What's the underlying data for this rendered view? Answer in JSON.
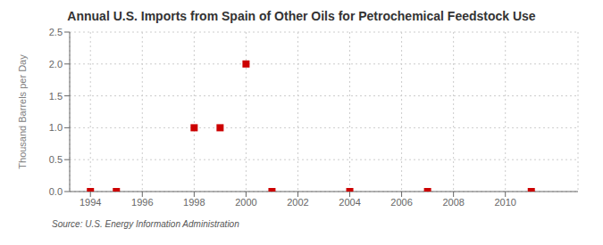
{
  "chart_data": {
    "type": "scatter",
    "title": "Annual U.S. Imports from Spain of Other Oils for Petrochemical Feedstock Use",
    "y_label": "Thousand Barrels per Day",
    "annotations": [
      "Source: U.S. Energy Information Administration"
    ],
    "x": [
      1994,
      1995,
      1998,
      1999,
      2000,
      2001,
      2004,
      2007,
      2011
    ],
    "values": [
      0.0,
      0.0,
      1.0,
      1.0,
      2.0,
      0.0,
      0.0,
      0.0,
      0.0
    ],
    "color": "#cc0000",
    "marker": "square",
    "xlim": [
      1993.2,
      2012.8
    ],
    "xticks": [
      1994,
      1996,
      1998,
      2000,
      2002,
      2004,
      2006,
      2008,
      2010
    ],
    "ylim": [
      0.0,
      2.5
    ],
    "yticks": [
      {
        "value": 0.0,
        "label": "0.0"
      },
      0.5,
      {
        "value": 1.0,
        "label": "1.0"
      },
      1.5,
      {
        "value": 2.0,
        "label": "2.0"
      },
      2.5
    ],
    "grid": true
  }
}
